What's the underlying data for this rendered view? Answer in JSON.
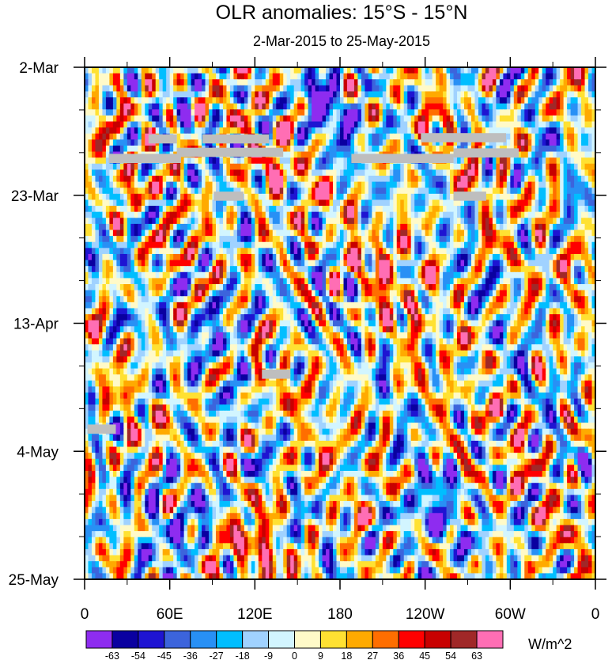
{
  "chart_data": {
    "type": "heatmap",
    "title": "OLR anomalies: 15°S - 15°N",
    "subtitle": "2-Mar-2015 to 25-May-2015",
    "x_axis": {
      "quantity": "longitude",
      "range": [
        "0",
        "360"
      ],
      "tick_labels": [
        "0",
        "60E",
        "120E",
        "180",
        "120W",
        "60W",
        "0"
      ]
    },
    "y_axis": {
      "quantity": "date",
      "range": [
        "2-Mar-2015",
        "25-May-2015"
      ],
      "direction": "top-to-bottom",
      "tick_labels": [
        "2-Mar",
        "23-Mar",
        "13-Apr",
        "4-May",
        "25-May"
      ]
    },
    "colorbar": {
      "units": "W/m^2",
      "levels": [
        "-63",
        "-54",
        "-45",
        "-36",
        "-27",
        "-18",
        "-9",
        "0",
        "9",
        "18",
        "27",
        "36",
        "45",
        "54",
        "63"
      ],
      "colors": [
        "#8e2cf0",
        "#0a00a0",
        "#1e14d2",
        "#3c64dc",
        "#2890f5",
        "#00beff",
        "#a0d2ff",
        "#d2f5ff",
        "#fffac8",
        "#ffe132",
        "#ffaa00",
        "#ff6e00",
        "#ff0000",
        "#c80000",
        "#a02828",
        "#ff6eb4"
      ]
    },
    "missing_data_color": "#bebebe",
    "features": [
      {
        "description": "strong negative anomaly (convection)",
        "lon": 165,
        "date": "10-Mar-2015",
        "value": -63
      },
      {
        "description": "negative band",
        "lon": 100,
        "date": "13-Apr-2015",
        "value": -40
      },
      {
        "description": "negative anomaly",
        "lon": 240,
        "date": "16-May-2015",
        "value": -50
      },
      {
        "description": "positive anomaly",
        "lon": 120,
        "date": "20-May-2015",
        "value": 45
      },
      {
        "description": "positive anomaly",
        "lon": 140,
        "date": "17-Mar-2015",
        "value": 45
      },
      {
        "description": "positive anomaly",
        "lon": 220,
        "date": "5-Apr-2015",
        "value": 30
      },
      {
        "description": "negative anomaly",
        "lon": 75,
        "date": "14-May-2015",
        "value": -50
      }
    ]
  }
}
